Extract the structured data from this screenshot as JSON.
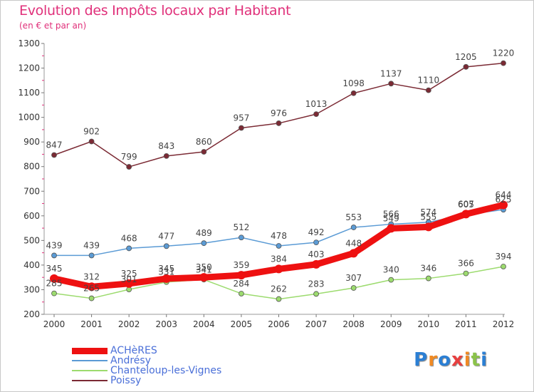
{
  "chart_data": {
    "type": "line",
    "title": "Evolution des Impôts locaux par Habitant",
    "subtitle": "(en € et par an)",
    "xlabel": "",
    "ylabel": "",
    "ylim": [
      200,
      1300
    ],
    "yticks": [
      200,
      300,
      400,
      500,
      600,
      700,
      800,
      900,
      1000,
      1100,
      1200,
      1300
    ],
    "categories": [
      "2000",
      "2001",
      "2002",
      "2003",
      "2004",
      "2005",
      "2006",
      "2007",
      "2008",
      "2009",
      "2010",
      "2011",
      "2012"
    ],
    "grid": false,
    "legend": "bottom-left",
    "series": [
      {
        "name": "ACHèRES",
        "color": "#ee1111",
        "values": [
          345,
          312,
          325,
          345,
          350,
          359,
          384,
          403,
          448,
          549,
          555,
          607,
          644
        ]
      },
      {
        "name": "Andrésy",
        "color": "#5b9bd5",
        "values": [
          439,
          439,
          468,
          477,
          489,
          512,
          478,
          492,
          553,
          566,
          574,
          605,
          625
        ]
      },
      {
        "name": "Chanteloup-les-Vignes",
        "color": "#9cdb6e",
        "values": [
          285,
          265,
          301,
          331,
          341,
          284,
          262,
          283,
          307,
          340,
          346,
          366,
          394
        ]
      },
      {
        "name": "Poissy",
        "color": "#7b2a34",
        "values": [
          847,
          902,
          799,
          843,
          860,
          957,
          976,
          1013,
          1098,
          1137,
          1110,
          1205,
          1220
        ]
      }
    ]
  },
  "brand": {
    "name": "Proxiti",
    "letters": [
      "P",
      "r",
      "o",
      "x",
      "i",
      "t",
      "i"
    ],
    "colors": [
      "#2b7fd4",
      "#f08a24",
      "#2b7fd4",
      "#e83f3f",
      "#f08a24",
      "#8bc34a",
      "#2b7fd4"
    ]
  }
}
